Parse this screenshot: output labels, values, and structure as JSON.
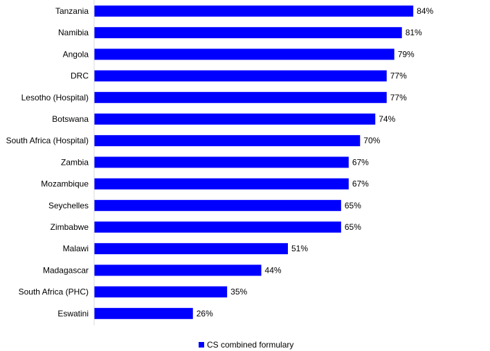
{
  "chart_data": {
    "type": "bar",
    "orientation": "horizontal",
    "categories": [
      "Tanzania",
      "Namibia",
      "Angola",
      "DRC",
      "Lesotho (Hospital)",
      "Botswana",
      "South Africa (Hospital)",
      "Zambia",
      "Mozambique",
      "Seychelles",
      "Zimbabwe",
      "Malawi",
      "Madagascar",
      "South Africa (PHC)",
      "Eswatini"
    ],
    "series": [
      {
        "name": "CS combined formulary",
        "values": [
          84,
          81,
          79,
          77,
          77,
          74,
          70,
          67,
          67,
          65,
          65,
          51,
          44,
          35,
          26
        ],
        "labels": [
          "84%",
          "81%",
          "79%",
          "77%",
          "77%",
          "74%",
          "70%",
          "67%",
          "67%",
          "65%",
          "65%",
          "51%",
          "44%",
          "35%",
          "26%"
        ],
        "color": "#0000ff"
      }
    ],
    "xlim": [
      0,
      100
    ],
    "unit": "%",
    "grid": false,
    "legend": "bottom-center",
    "axis_color": "#d9d9d9"
  }
}
